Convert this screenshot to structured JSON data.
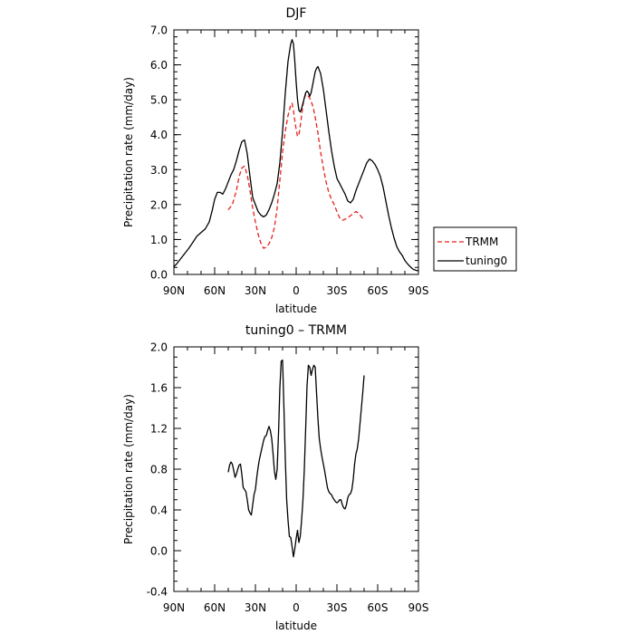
{
  "chart_data": [
    {
      "type": "line",
      "title": "DJF",
      "xlabel": "latitude",
      "ylabel": "Precipitation rate (mm/day)",
      "xlim": [
        90,
        -90
      ],
      "ylim": [
        0,
        7
      ],
      "xticks": [
        90,
        60,
        30,
        0,
        -30,
        -60,
        -90
      ],
      "xticklabels": [
        "90N",
        "60N",
        "30N",
        "0",
        "30S",
        "60S",
        "90S"
      ],
      "yticks": [
        0,
        1,
        2,
        3,
        4,
        5,
        6,
        7
      ],
      "yticklabels": [
        "0.0",
        "1.0",
        "2.0",
        "3.0",
        "4.0",
        "5.0",
        "6.0",
        "7.0"
      ],
      "legend": "right",
      "series": [
        {
          "name": "TRMM",
          "color": "#e8201c",
          "dash": "dashed",
          "x": [
            50,
            47,
            44,
            42,
            40,
            38,
            36,
            34,
            32,
            30,
            28,
            26,
            24,
            22,
            20,
            18,
            16,
            14,
            12,
            10,
            8,
            6,
            4,
            3,
            2,
            1,
            0,
            -1,
            -2,
            -3,
            -4,
            -5,
            -6,
            -7,
            -8,
            -9,
            -10,
            -11,
            -12,
            -13,
            -14,
            -16,
            -18,
            -20,
            -22,
            -24,
            -26,
            -28,
            -30,
            -32,
            -34,
            -36,
            -38,
            -40,
            -42,
            -44,
            -46,
            -48,
            -50
          ],
          "y": [
            1.85,
            2.0,
            2.4,
            2.8,
            3.05,
            3.1,
            2.85,
            2.4,
            1.9,
            1.5,
            1.15,
            0.9,
            0.75,
            0.78,
            0.88,
            1.05,
            1.35,
            1.9,
            2.7,
            3.5,
            4.1,
            4.55,
            4.85,
            4.9,
            4.7,
            4.4,
            4.15,
            3.95,
            4.0,
            4.25,
            4.55,
            4.85,
            5.05,
            5.15,
            5.15,
            5.1,
            5.05,
            4.95,
            4.85,
            4.7,
            4.5,
            4.05,
            3.5,
            3.05,
            2.65,
            2.35,
            2.15,
            2.0,
            1.8,
            1.62,
            1.55,
            1.58,
            1.63,
            1.68,
            1.75,
            1.8,
            1.75,
            1.65,
            1.55
          ]
        },
        {
          "name": "tuning0",
          "color": "#000000",
          "dash": "solid",
          "x": [
            90,
            88,
            85,
            82,
            79,
            76,
            73,
            70,
            67,
            64,
            62,
            60,
            58,
            56,
            54,
            52,
            50,
            48,
            46,
            44,
            42,
            40,
            38,
            36,
            34,
            32,
            30,
            28,
            26,
            24,
            22,
            20,
            18,
            16,
            14,
            12,
            10,
            8,
            6,
            4,
            3,
            2,
            1,
            0,
            -1,
            -2,
            -3,
            -4,
            -5,
            -6,
            -7,
            -8,
            -9,
            -10,
            -11,
            -12,
            -13,
            -14,
            -15,
            -16,
            -18,
            -20,
            -22,
            -24,
            -26,
            -28,
            -30,
            -32,
            -34,
            -36,
            -38,
            -40,
            -42,
            -44,
            -46,
            -48,
            -50,
            -52,
            -54,
            -56,
            -58,
            -60,
            -62,
            -64,
            -66,
            -68,
            -70,
            -72,
            -74,
            -76,
            -78,
            -80,
            -82,
            -84,
            -86,
            -88,
            -90
          ],
          "y": [
            0.22,
            0.3,
            0.45,
            0.6,
            0.75,
            0.92,
            1.1,
            1.2,
            1.3,
            1.5,
            1.8,
            2.15,
            2.35,
            2.35,
            2.3,
            2.45,
            2.65,
            2.85,
            3.0,
            3.25,
            3.55,
            3.8,
            3.85,
            3.45,
            2.8,
            2.2,
            2.0,
            1.8,
            1.7,
            1.65,
            1.7,
            1.85,
            2.05,
            2.3,
            2.6,
            3.2,
            4.1,
            5.2,
            6.1,
            6.6,
            6.72,
            6.6,
            6.1,
            5.5,
            5.0,
            4.7,
            4.65,
            4.75,
            4.9,
            5.05,
            5.2,
            5.25,
            5.2,
            5.1,
            5.2,
            5.4,
            5.6,
            5.8,
            5.9,
            5.95,
            5.75,
            5.3,
            4.7,
            4.1,
            3.55,
            3.1,
            2.75,
            2.6,
            2.45,
            2.3,
            2.1,
            2.05,
            2.15,
            2.4,
            2.6,
            2.8,
            3.0,
            3.2,
            3.3,
            3.25,
            3.15,
            3.0,
            2.8,
            2.5,
            2.1,
            1.7,
            1.35,
            1.05,
            0.8,
            0.65,
            0.55,
            0.4,
            0.3,
            0.22,
            0.15,
            0.12,
            0.1
          ]
        }
      ]
    },
    {
      "type": "line",
      "title": "tuning0 – TRMM",
      "xlabel": "latitude",
      "ylabel": "Precipitation rate (mm/day)",
      "xlim": [
        90,
        -90
      ],
      "ylim": [
        -0.4,
        2.0
      ],
      "xticks": [
        90,
        60,
        30,
        0,
        -30,
        -60,
        -90
      ],
      "xticklabels": [
        "90N",
        "60N",
        "30N",
        "0",
        "30S",
        "60S",
        "90S"
      ],
      "yticks": [
        -0.4,
        0.0,
        0.4,
        0.8,
        1.2,
        1.6,
        2.0
      ],
      "yticklabels": [
        "-0.4",
        "0.0",
        "0.4",
        "0.8",
        "1.2",
        "1.6",
        "2.0"
      ],
      "series": [
        {
          "color": "#000000",
          "dash": "solid",
          "x": [
            50,
            49,
            48,
            47,
            46,
            45,
            44,
            43,
            42,
            41,
            40,
            39,
            38,
            37,
            36,
            35,
            34,
            33,
            32,
            31,
            30,
            29,
            28,
            27,
            26,
            25,
            24,
            23,
            22,
            21,
            20,
            19,
            18,
            17,
            16,
            15,
            14,
            13,
            12,
            11,
            10,
            9,
            8,
            7,
            6,
            5,
            4,
            3,
            2,
            1,
            0,
            -1,
            -2,
            -3,
            -4,
            -5,
            -6,
            -7,
            -8,
            -9,
            -10,
            -11,
            -12,
            -13,
            -14,
            -15,
            -16,
            -17,
            -18,
            -19,
            -20,
            -21,
            -22,
            -23,
            -24,
            -25,
            -26,
            -27,
            -28,
            -29,
            -30,
            -31,
            -32,
            -33,
            -34,
            -35,
            -36,
            -37,
            -38,
            -39,
            -40,
            -41,
            -42,
            -43,
            -44,
            -45,
            -46,
            -47,
            -48,
            -49,
            -50
          ],
          "y": [
            0.77,
            0.84,
            0.87,
            0.85,
            0.79,
            0.72,
            0.75,
            0.8,
            0.84,
            0.85,
            0.75,
            0.62,
            0.6,
            0.58,
            0.5,
            0.4,
            0.37,
            0.35,
            0.45,
            0.55,
            0.6,
            0.72,
            0.82,
            0.9,
            0.96,
            1.02,
            1.08,
            1.12,
            1.13,
            1.18,
            1.22,
            1.18,
            1.1,
            0.95,
            0.78,
            0.7,
            0.8,
            1.15,
            1.6,
            1.86,
            1.87,
            1.4,
            0.9,
            0.5,
            0.3,
            0.14,
            0.13,
            0.04,
            -0.06,
            0.02,
            0.12,
            0.2,
            0.08,
            0.14,
            0.3,
            0.5,
            0.8,
            1.2,
            1.62,
            1.82,
            1.8,
            1.72,
            1.78,
            1.82,
            1.8,
            1.55,
            1.3,
            1.1,
            1.0,
            0.92,
            0.85,
            0.78,
            0.7,
            0.62,
            0.58,
            0.56,
            0.55,
            0.52,
            0.5,
            0.48,
            0.47,
            0.48,
            0.5,
            0.5,
            0.45,
            0.42,
            0.41,
            0.45,
            0.52,
            0.55,
            0.56,
            0.6,
            0.7,
            0.85,
            0.95,
            1.0,
            1.1,
            1.25,
            1.4,
            1.55,
            1.72
          ]
        }
      ]
    }
  ]
}
